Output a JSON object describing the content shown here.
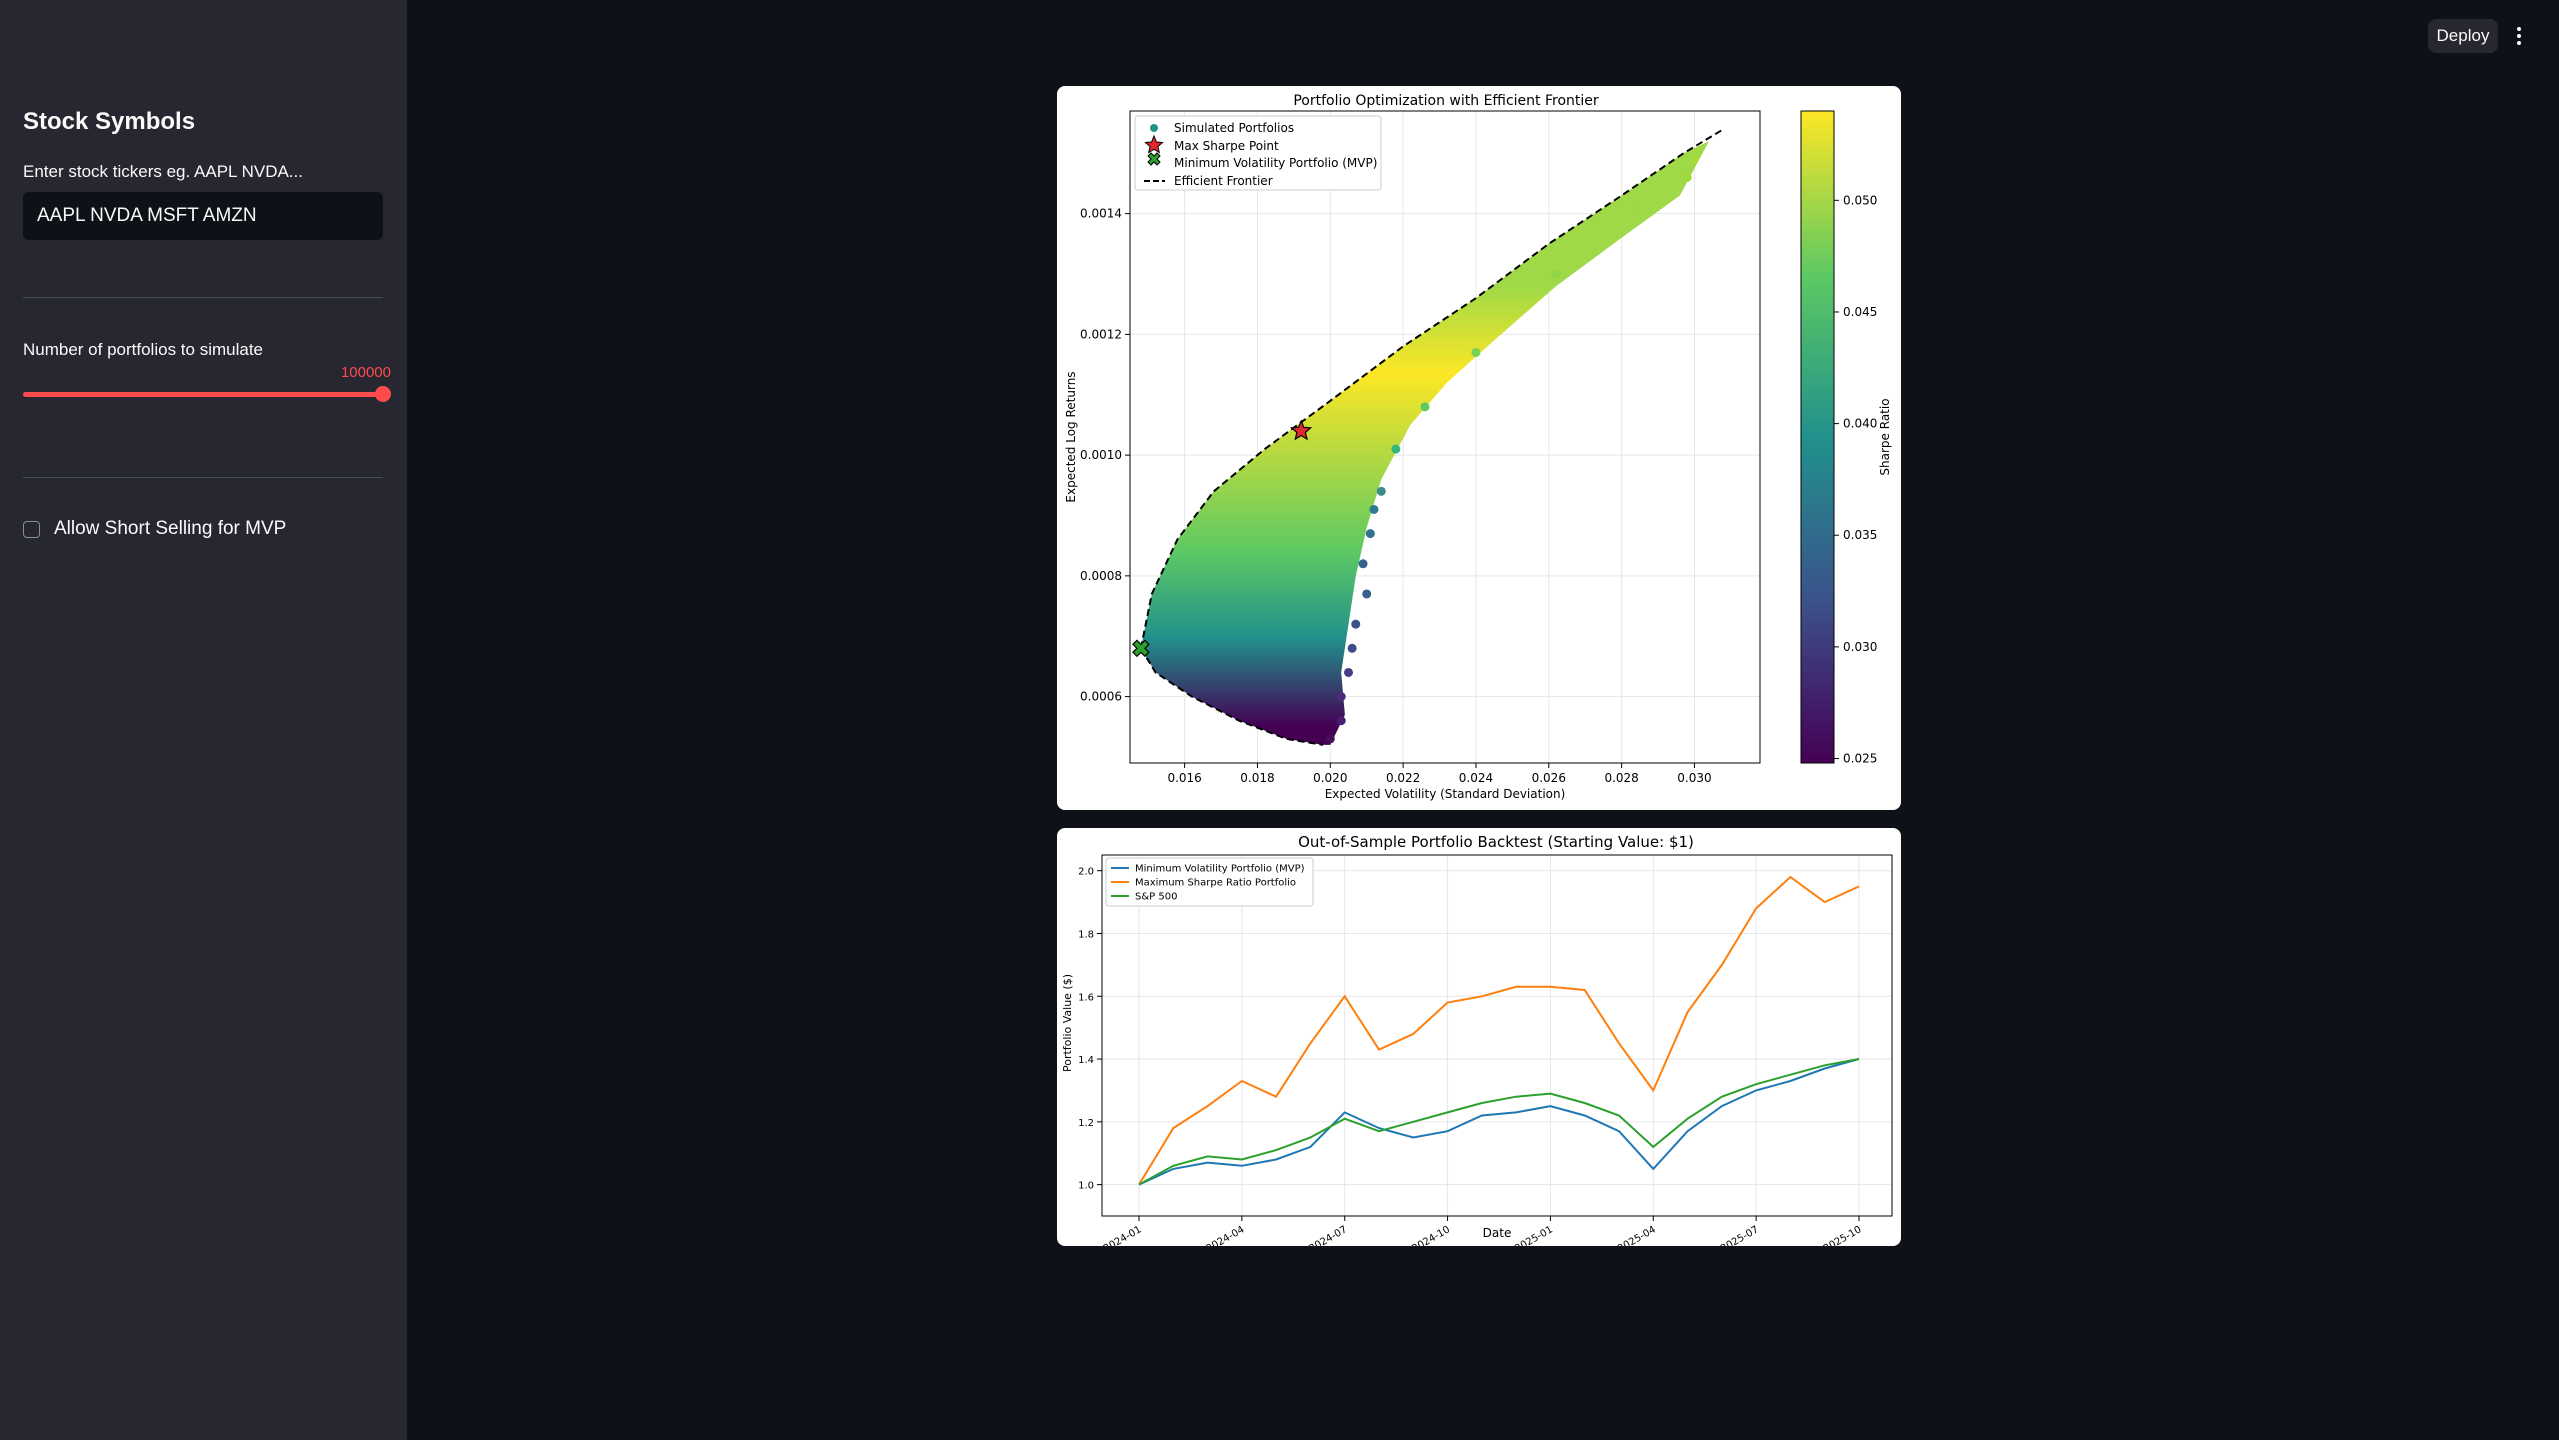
{
  "header": {
    "deploy_label": "Deploy",
    "menu_icon": "kebab-menu-icon"
  },
  "sidebar": {
    "title": "Stock Symbols",
    "tickers_label": "Enter stock tickers eg. AAPL NVDA...",
    "tickers_value": "AAPL NVDA MSFT AMZN",
    "slider_label": "Number of portfolios to simulate",
    "slider_value": "100000",
    "slider_fraction": 1.0,
    "checkbox_label": "Allow Short Selling for MVP",
    "checkbox_checked": false,
    "accent_color": "#ff4b4b"
  },
  "chart_data": [
    {
      "type": "scatter",
      "title": "Portfolio Optimization with Efficient Frontier",
      "xlabel": "Expected Volatility (Standard Deviation)",
      "ylabel": "Expected Log Returns",
      "xlim": [
        0.0145,
        0.0318
      ],
      "ylim": [
        0.00049,
        0.00157
      ],
      "xticks": [
        "0.016",
        "0.018",
        "0.020",
        "0.022",
        "0.024",
        "0.026",
        "0.028",
        "0.030"
      ],
      "xtick_values": [
        0.016,
        0.018,
        0.02,
        0.022,
        0.024,
        0.026,
        0.028,
        0.03
      ],
      "yticks": [
        "0.0006",
        "0.0008",
        "0.0010",
        "0.0012",
        "0.0014"
      ],
      "ytick_values": [
        0.0006,
        0.0008,
        0.001,
        0.0012,
        0.0014
      ],
      "colorbar": {
        "label": "Sharpe Ratio",
        "colormap": "viridis",
        "range": [
          0.0248,
          0.054
        ],
        "ticks": [
          "0.025",
          "0.030",
          "0.035",
          "0.040",
          "0.045",
          "0.050"
        ],
        "tick_values": [
          0.025,
          0.03,
          0.035,
          0.04,
          0.045,
          0.05
        ]
      },
      "legend": [
        "Simulated Portfolios",
        "Max Sharpe Point",
        "Minimum Volatility Portfolio (MVP)",
        "Efficient Frontier"
      ],
      "legend_position": "top-left",
      "grid": true,
      "max_sharpe": {
        "x": 0.0192,
        "y": 0.00104
      },
      "mvp": {
        "x": 0.0148,
        "y": 0.00068
      },
      "efficient_frontier": [
        [
          0.0148,
          0.00068
        ],
        [
          0.0151,
          0.00077
        ],
        [
          0.0158,
          0.00086
        ],
        [
          0.0168,
          0.00094
        ],
        [
          0.0182,
          0.00101
        ],
        [
          0.02,
          0.00109
        ],
        [
          0.022,
          0.00118
        ],
        [
          0.024,
          0.00126
        ],
        [
          0.026,
          0.00135
        ],
        [
          0.028,
          0.00143
        ],
        [
          0.0297,
          0.0015
        ],
        [
          0.0308,
          0.00154
        ]
      ],
      "lower_frontier": [
        [
          0.0148,
          0.00068
        ],
        [
          0.0152,
          0.00064
        ],
        [
          0.0162,
          0.0006
        ],
        [
          0.0175,
          0.00056
        ],
        [
          0.0188,
          0.00053
        ],
        [
          0.0198,
          0.00052
        ]
      ]
    },
    {
      "type": "line",
      "title": "Out-of-Sample Portfolio Backtest (Starting Value: $1)",
      "xlabel": "Date",
      "ylabel": "Portfolio Value ($)",
      "x": [
        "2024-01",
        "2024-02",
        "2024-03",
        "2024-04",
        "2024-05",
        "2024-06",
        "2024-07",
        "2024-08",
        "2024-09",
        "2024-10",
        "2024-11",
        "2024-12",
        "2025-01",
        "2025-02",
        "2025-03",
        "2025-04",
        "2025-05",
        "2025-06",
        "2025-07",
        "2025-08",
        "2025-09",
        "2025-10"
      ],
      "xticks": [
        "2024-01",
        "2024-04",
        "2024-07",
        "2024-10",
        "2025-01",
        "2025-04",
        "2025-07",
        "2025-10"
      ],
      "ylim": [
        0.9,
        2.05
      ],
      "yticks": [
        "1.0",
        "1.2",
        "1.4",
        "1.6",
        "1.8",
        "2.0"
      ],
      "ytick_values": [
        1.0,
        1.2,
        1.4,
        1.6,
        1.8,
        2.0
      ],
      "legend_position": "top-left",
      "grid": true,
      "series": [
        {
          "name": "Minimum Volatility Portfolio (MVP)",
          "color": "#1f77b4",
          "values": [
            1.0,
            1.05,
            1.07,
            1.06,
            1.08,
            1.12,
            1.23,
            1.18,
            1.15,
            1.17,
            1.22,
            1.23,
            1.25,
            1.22,
            1.17,
            1.05,
            1.17,
            1.25,
            1.3,
            1.33,
            1.37,
            1.4
          ]
        },
        {
          "name": "Maximum Sharpe Ratio Portfolio",
          "color": "#ff7f0e",
          "values": [
            1.0,
            1.18,
            1.25,
            1.33,
            1.28,
            1.45,
            1.6,
            1.43,
            1.48,
            1.58,
            1.6,
            1.63,
            1.63,
            1.62,
            1.45,
            1.3,
            1.55,
            1.7,
            1.88,
            1.98,
            1.9,
            1.95
          ]
        },
        {
          "name": "S&P 500",
          "color": "#2ca02c",
          "values": [
            1.0,
            1.06,
            1.09,
            1.08,
            1.11,
            1.15,
            1.21,
            1.17,
            1.2,
            1.23,
            1.26,
            1.28,
            1.29,
            1.26,
            1.22,
            1.12,
            1.21,
            1.28,
            1.32,
            1.35,
            1.38,
            1.4
          ]
        }
      ]
    }
  ]
}
